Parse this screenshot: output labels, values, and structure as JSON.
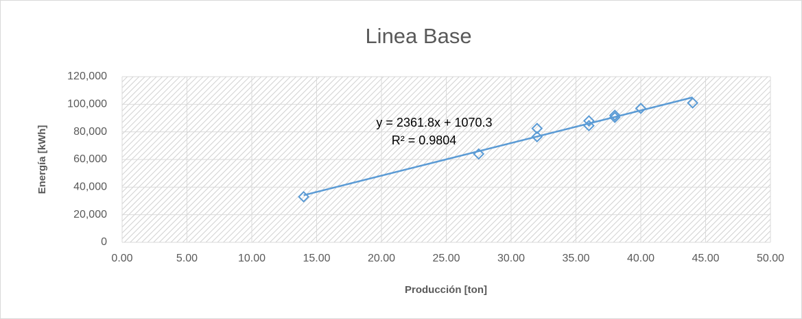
{
  "chart_data": {
    "type": "scatter",
    "title": "Linea Base",
    "x_label": "Producción [ton]",
    "y_label": "Energía [kWh]",
    "color": "#5b9bd5",
    "x": [
      14,
      27.5,
      32,
      32,
      36,
      36,
      38,
      38,
      40,
      44
    ],
    "values": [
      33000,
      64000,
      76500,
      82500,
      84500,
      88000,
      90500,
      92000,
      97000,
      101000
    ],
    "trendline": {
      "label": "y = 2361.8x + 1070.3",
      "r2_label": "R² = 0.9804",
      "slope": 2361.8,
      "intercept": 1070.3
    },
    "xlim": [
      0,
      50
    ],
    "xticks": [
      {
        "value": 0,
        "label": "0.00"
      },
      {
        "value": 5,
        "label": "5.00"
      },
      {
        "value": 10,
        "label": "10.00"
      },
      {
        "value": 15,
        "label": "15.00"
      },
      {
        "value": 20,
        "label": "20.00"
      },
      {
        "value": 25,
        "label": "25.00"
      },
      {
        "value": 30,
        "label": "30.00"
      },
      {
        "value": 35,
        "label": "35.00"
      },
      {
        "value": 40,
        "label": "40.00"
      },
      {
        "value": 45,
        "label": "45.00"
      },
      {
        "value": 50,
        "label": "50.00"
      }
    ],
    "ylim": [
      0,
      120000
    ],
    "yticks": [
      0,
      {
        "value": 20000,
        "label": "20,000"
      },
      {
        "value": 40000,
        "label": "40,000"
      },
      {
        "value": 60000,
        "label": "60,000"
      },
      {
        "value": 80000,
        "label": "80,000"
      },
      {
        "value": 100000,
        "label": "100,000"
      },
      {
        "value": 120000,
        "label": "120,000"
      }
    ],
    "grid": true
  }
}
